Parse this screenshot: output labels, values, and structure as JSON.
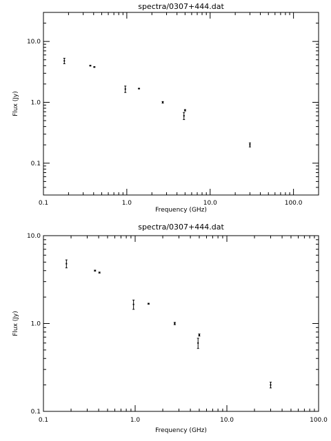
{
  "chart_data": [
    {
      "type": "scatter",
      "title": "spectra/0307+444.dat",
      "xlabel": "Frequency (GHz)",
      "ylabel": "Flux (Jy)",
      "xscale": "log",
      "yscale": "log",
      "xlim": [
        0.1,
        200
      ],
      "ylim": [
        0.03,
        30
      ],
      "xticks": [
        {
          "value": 0.1,
          "label": "0.1"
        },
        {
          "value": 1.0,
          "label": "1.0"
        },
        {
          "value": 10.0,
          "label": "10.0"
        },
        {
          "value": 100.0,
          "label": "100.0"
        }
      ],
      "yticks": [
        {
          "value": 0.1,
          "label": "0.1"
        },
        {
          "value": 1.0,
          "label": "1.0"
        },
        {
          "value": 10.0,
          "label": "10.0"
        }
      ],
      "series": [
        {
          "points": [
            {
              "x": 0.178,
              "y": 4.8,
              "yerr_lo": 4.3,
              "yerr_hi": 5.3
            },
            {
              "x": 0.365,
              "y": 4.0,
              "yerr_lo": 3.95,
              "yerr_hi": 4.05
            },
            {
              "x": 0.408,
              "y": 3.8,
              "yerr_lo": 3.75,
              "yerr_hi": 3.85
            },
            {
              "x": 0.96,
              "y": 1.65,
              "yerr_lo": 1.45,
              "yerr_hi": 1.85
            },
            {
              "x": 1.4,
              "y": 1.68,
              "yerr_lo": 1.66,
              "yerr_hi": 1.7
            },
            {
              "x": 2.7,
              "y": 1.0,
              "yerr_lo": 0.97,
              "yerr_hi": 1.03
            },
            {
              "x": 4.85,
              "y": 0.6,
              "yerr_lo": 0.52,
              "yerr_hi": 0.68
            },
            {
              "x": 5.0,
              "y": 0.74,
              "yerr_lo": 0.72,
              "yerr_hi": 0.76
            },
            {
              "x": 30.0,
              "y": 0.2,
              "yerr_lo": 0.185,
              "yerr_hi": 0.215
            }
          ]
        }
      ],
      "grid": false,
      "mirrored_ticks": true
    },
    {
      "type": "scatter",
      "title": "spectra/0307+444.dat",
      "xlabel": "Frequency (GHz)",
      "ylabel": "Flux (Jy)",
      "xscale": "log",
      "yscale": "log",
      "xlim": [
        0.1,
        100
      ],
      "ylim": [
        0.1,
        10
      ],
      "xticks": [
        {
          "value": 0.1,
          "label": "0.1"
        },
        {
          "value": 1.0,
          "label": "1.0"
        },
        {
          "value": 10.0,
          "label": "10.0"
        },
        {
          "value": 100.0,
          "label": "100.0"
        }
      ],
      "yticks": [
        {
          "value": 0.1,
          "label": "0.1"
        },
        {
          "value": 1.0,
          "label": "1.0"
        },
        {
          "value": 10.0,
          "label": "10.0"
        }
      ],
      "series": [
        {
          "points": [
            {
              "x": 0.178,
              "y": 4.8,
              "yerr_lo": 4.3,
              "yerr_hi": 5.3
            },
            {
              "x": 0.365,
              "y": 4.0,
              "yerr_lo": 3.95,
              "yerr_hi": 4.05
            },
            {
              "x": 0.408,
              "y": 3.8,
              "yerr_lo": 3.75,
              "yerr_hi": 3.85
            },
            {
              "x": 0.96,
              "y": 1.65,
              "yerr_lo": 1.45,
              "yerr_hi": 1.85
            },
            {
              "x": 1.4,
              "y": 1.68,
              "yerr_lo": 1.66,
              "yerr_hi": 1.7
            },
            {
              "x": 2.7,
              "y": 1.0,
              "yerr_lo": 0.97,
              "yerr_hi": 1.03
            },
            {
              "x": 4.85,
              "y": 0.6,
              "yerr_lo": 0.52,
              "yerr_hi": 0.68
            },
            {
              "x": 5.0,
              "y": 0.74,
              "yerr_lo": 0.72,
              "yerr_hi": 0.76
            },
            {
              "x": 30.0,
              "y": 0.2,
              "yerr_lo": 0.185,
              "yerr_hi": 0.215
            }
          ]
        }
      ],
      "grid": false,
      "mirrored_ticks": true
    }
  ],
  "colors": {
    "background": "#ffffff",
    "foreground": "#000000"
  }
}
